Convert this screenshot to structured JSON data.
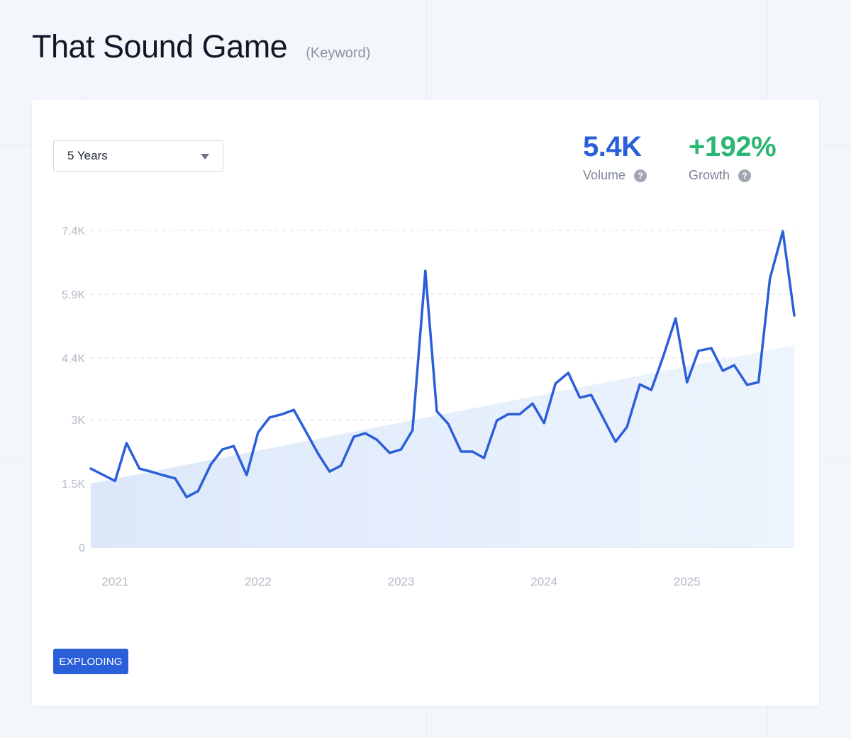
{
  "header": {
    "title": "That Sound Game",
    "tag": "(Keyword)"
  },
  "controls": {
    "range_label": "5 Years"
  },
  "metrics": {
    "volume": {
      "value": "5.4K",
      "label": "Volume",
      "color": "#2b5fd9"
    },
    "growth": {
      "value": "+192%",
      "label": "Growth",
      "color": "#2bb673"
    },
    "help_icon": "question-circle-icon"
  },
  "status": {
    "label": "EXPLODING",
    "color": "#2b5fd9"
  },
  "chart_data": {
    "type": "line",
    "y_ticks": [
      {
        "value": 0,
        "label": "0"
      },
      {
        "value": 1500,
        "label": "1.5K"
      },
      {
        "value": 3000,
        "label": "3K"
      },
      {
        "value": 4450,
        "label": "4.4K"
      },
      {
        "value": 5950,
        "label": "5.9K"
      },
      {
        "value": 7450,
        "label": "7.4K"
      }
    ],
    "x_ticks": [
      {
        "value": 2021.0,
        "label": "2021"
      },
      {
        "value": 2022.0,
        "label": "2022"
      },
      {
        "value": 2023.0,
        "label": "2023"
      },
      {
        "value": 2024.0,
        "label": "2024"
      },
      {
        "value": 2025.0,
        "label": "2025"
      }
    ],
    "xlim": [
      2020.83,
      2025.75
    ],
    "ylim": [
      0,
      7450
    ],
    "grid": true,
    "line_color": "#2b5fd9",
    "trend_fill": "#dde9fa",
    "trend": [
      {
        "x": 2020.83,
        "y": 1500
      },
      {
        "x": 2025.75,
        "y": 4750
      }
    ],
    "series": [
      {
        "points": [
          [
            2020.83,
            1850
          ],
          [
            2021.0,
            1560
          ],
          [
            2021.08,
            2450
          ],
          [
            2021.17,
            1850
          ],
          [
            2021.25,
            1780
          ],
          [
            2021.33,
            1700
          ],
          [
            2021.42,
            1620
          ],
          [
            2021.5,
            1180
          ],
          [
            2021.58,
            1320
          ],
          [
            2021.67,
            1950
          ],
          [
            2021.75,
            2300
          ],
          [
            2021.83,
            2380
          ],
          [
            2021.92,
            1700
          ],
          [
            2022.0,
            2700
          ],
          [
            2022.08,
            3050
          ],
          [
            2022.17,
            3130
          ],
          [
            2022.25,
            3230
          ],
          [
            2022.33,
            2750
          ],
          [
            2022.42,
            2200
          ],
          [
            2022.5,
            1780
          ],
          [
            2022.58,
            1920
          ],
          [
            2022.67,
            2600
          ],
          [
            2022.75,
            2680
          ],
          [
            2022.83,
            2530
          ],
          [
            2022.92,
            2220
          ],
          [
            2023.0,
            2300
          ],
          [
            2023.08,
            2750
          ],
          [
            2023.17,
            6500
          ],
          [
            2023.25,
            3200
          ],
          [
            2023.33,
            2900
          ],
          [
            2023.42,
            2250
          ],
          [
            2023.5,
            2250
          ],
          [
            2023.58,
            2100
          ],
          [
            2023.67,
            2980
          ],
          [
            2023.75,
            3130
          ],
          [
            2023.83,
            3130
          ],
          [
            2023.92,
            3380
          ],
          [
            2024.0,
            2920
          ],
          [
            2024.08,
            3850
          ],
          [
            2024.17,
            4100
          ],
          [
            2024.25,
            3520
          ],
          [
            2024.33,
            3580
          ],
          [
            2024.42,
            3000
          ],
          [
            2024.5,
            2480
          ],
          [
            2024.58,
            2830
          ],
          [
            2024.67,
            3830
          ],
          [
            2024.75,
            3700
          ],
          [
            2024.83,
            4450
          ],
          [
            2024.92,
            5380
          ],
          [
            2025.0,
            3880
          ],
          [
            2025.08,
            4620
          ],
          [
            2025.17,
            4680
          ],
          [
            2025.25,
            4150
          ],
          [
            2025.33,
            4280
          ],
          [
            2025.42,
            3820
          ],
          [
            2025.5,
            3880
          ],
          [
            2025.58,
            6320
          ],
          [
            2025.67,
            7430
          ],
          [
            2025.75,
            5450
          ]
        ]
      }
    ]
  }
}
